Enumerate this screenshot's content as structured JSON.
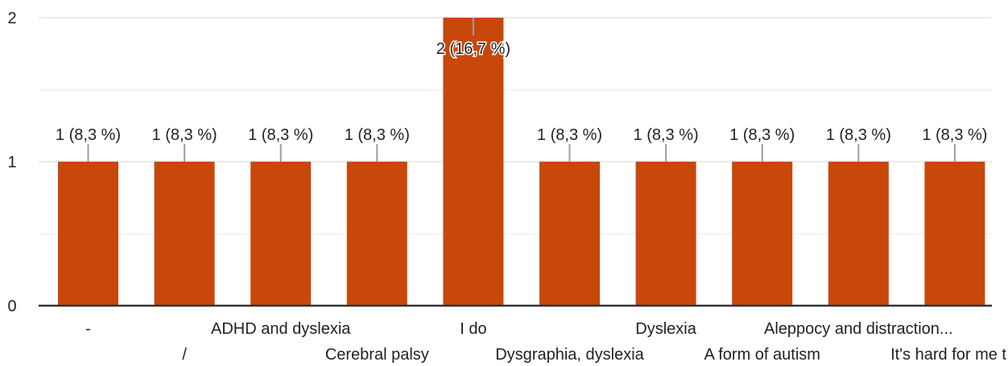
{
  "chart_data": {
    "type": "bar",
    "categories": [
      "-",
      "/",
      "ADHD and dyslexia",
      "Cerebral palsy",
      "I do",
      "Dysgraphia, dyslexia",
      "Dyslexia",
      "A form of autism",
      "Aleppocy and distraction...",
      "It's hard for me t"
    ],
    "values": [
      1,
      1,
      1,
      1,
      2,
      1,
      1,
      1,
      1,
      1
    ],
    "data_labels": [
      "1 (8,3 %)",
      "1 (8,3 %)",
      "1 (8,3 %)",
      "1 (8,3 %)",
      "2 (16,7 %)",
      "1 (8,3 %)",
      "1 (8,3 %)",
      "1 (8,3 %)",
      "1 (8,3 %)",
      "1 (8,3 %)"
    ],
    "y_ticks": [
      "0",
      "1",
      "2"
    ],
    "ylim": [
      0,
      2
    ],
    "grid": true,
    "bar_color": "#c8470b",
    "axis_color": "#333333",
    "grid_color": "#e6e6e6",
    "label_color": "#222222",
    "leader_color": "#9e9e9e"
  }
}
